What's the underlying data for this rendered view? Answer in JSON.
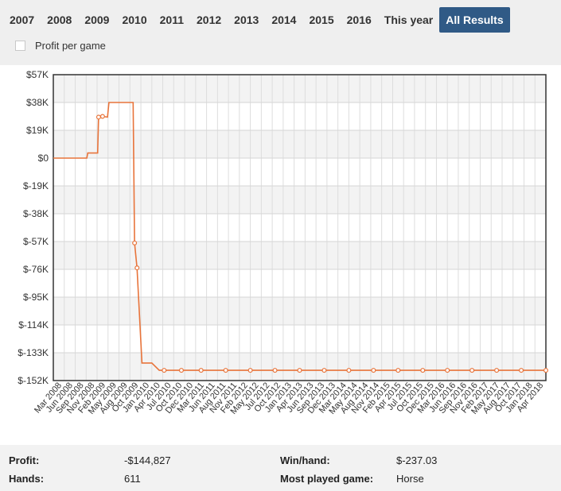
{
  "filter": {
    "years": [
      "2007",
      "2008",
      "2009",
      "2010",
      "2011",
      "2012",
      "2013",
      "2014",
      "2015",
      "2016",
      "This year",
      "All Results"
    ],
    "active_index": 11,
    "profit_per_game_label": "Profit per game",
    "profit_per_game_checked": false
  },
  "chart_data": {
    "type": "line",
    "title": "",
    "xlabel": "",
    "ylabel": "",
    "y_ticks": [
      57000,
      38000,
      19000,
      0,
      -19000,
      -38000,
      -57000,
      -76000,
      -95000,
      -114000,
      -133000,
      -152000
    ],
    "y_tick_labels": [
      "$57K",
      "$38K",
      "$19K",
      "$0",
      "$-19K",
      "$-38K",
      "$-57K",
      "$-76K",
      "$-95K",
      "$-114K",
      "$-133K",
      "$-152K"
    ],
    "ylim": [
      -152000,
      57000
    ],
    "x_tick_labels": [
      "Mar 2008",
      "Jun 2008",
      "Sep 2008",
      "Nov 2008",
      "Feb 2009",
      "May 2009",
      "Aug 2009",
      "Oct 2009",
      "Jan 2010",
      "Apr 2010",
      "Jul 2010",
      "Oct 2010",
      "Dec 2010",
      "Mar 2011",
      "Jun 2011",
      "Aug 2011",
      "Nov 2011",
      "Feb 2012",
      "May 2012",
      "Jul 2012",
      "Oct 2012",
      "Jan 2013",
      "Apr 2013",
      "Jun 2013",
      "Sep 2013",
      "Dec 2013",
      "Mar 2014",
      "May 2014",
      "Aug 2014",
      "Nov 2014",
      "Feb 2015",
      "Apr 2015",
      "Jul 2015",
      "Oct 2015",
      "Dec 2015",
      "Mar 2016",
      "Jun 2016",
      "Sep 2016",
      "Nov 2016",
      "Feb 2017",
      "May 2017",
      "Aug 2017",
      "Oct 2017",
      "Jan 2018",
      "Apr 2018"
    ],
    "grid": true,
    "series": [
      {
        "color": "#e8743b",
        "points": [
          [
            0,
            0
          ],
          [
            6.8,
            0
          ],
          [
            7.0,
            3500
          ],
          [
            9.0,
            3500
          ],
          [
            9.2,
            28000
          ],
          [
            10.0,
            28500
          ],
          [
            11.0,
            28000
          ],
          [
            11.3,
            38000
          ],
          [
            12.5,
            38000
          ],
          [
            14.5,
            38000
          ],
          [
            16.2,
            38000
          ],
          [
            16.5,
            -58000
          ],
          [
            17.0,
            -75000
          ],
          [
            18.0,
            -140000
          ],
          [
            20.0,
            -140000
          ],
          [
            21.5,
            -145000
          ],
          [
            22.5,
            -145000
          ],
          [
            26.0,
            -145000
          ],
          [
            30.0,
            -145000
          ],
          [
            35.0,
            -145000
          ],
          [
            40.0,
            -145000
          ],
          [
            45.0,
            -145000
          ],
          [
            50.0,
            -145000
          ],
          [
            55.0,
            -145000
          ],
          [
            60.0,
            -145000
          ],
          [
            65.0,
            -145000
          ],
          [
            70.0,
            -145000
          ],
          [
            75.0,
            -145000
          ],
          [
            80.0,
            -145000
          ],
          [
            85.0,
            -145000
          ],
          [
            90.0,
            -145000
          ],
          [
            95.0,
            -145000
          ],
          [
            100.0,
            -145000
          ]
        ],
        "markers": [
          [
            9.2,
            28000
          ],
          [
            10.0,
            28500
          ],
          [
            16.5,
            -58000
          ],
          [
            17.0,
            -75000
          ],
          [
            22.5,
            -145000
          ],
          [
            26.0,
            -145000
          ],
          [
            30.0,
            -145000
          ],
          [
            35.0,
            -145000
          ],
          [
            40.0,
            -145000
          ],
          [
            45.0,
            -145000
          ],
          [
            50.0,
            -145000
          ],
          [
            55.0,
            -145000
          ],
          [
            60.0,
            -145000
          ],
          [
            65.0,
            -145000
          ],
          [
            70.0,
            -145000
          ],
          [
            75.0,
            -145000
          ],
          [
            80.0,
            -145000
          ],
          [
            85.0,
            -145000
          ],
          [
            90.0,
            -145000
          ],
          [
            95.0,
            -145000
          ],
          [
            100.0,
            -145000
          ]
        ]
      }
    ]
  },
  "summary": {
    "profit_label": "Profit:",
    "profit_value": "-$144,827",
    "hands_label": "Hands:",
    "hands_value": "611",
    "winhand_label": "Win/hand:",
    "winhand_value": "$-237.03",
    "most_played_label": "Most played game:",
    "most_played_value": "Horse"
  }
}
